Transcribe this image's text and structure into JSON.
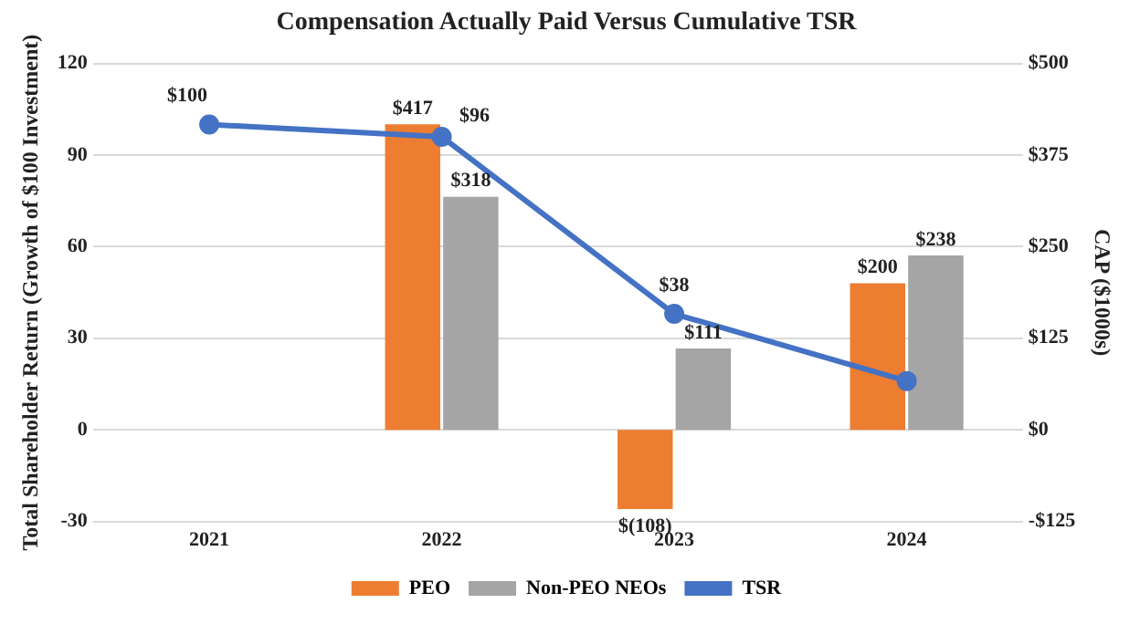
{
  "chart_data": {
    "type": "bar",
    "title": "Compensation Actually Paid Versus Cumulative TSR",
    "ylabel": "Total Shareholder Return (Growth of $100 Investment)",
    "y2label": "CAP ($1000s)",
    "categories": [
      "2021",
      "2022",
      "2023",
      "2024"
    ],
    "series": [
      {
        "name": "PEO",
        "axis": "y2",
        "color": "#ed7d31",
        "values": [
          null,
          417,
          -108,
          200
        ],
        "value_labels": [
          null,
          "$417",
          "$(108)",
          "$200"
        ]
      },
      {
        "name": "Non-PEO NEOs",
        "axis": "y2",
        "color": "#a5a5a5",
        "values": [
          null,
          318,
          111,
          238
        ],
        "value_labels": [
          null,
          "$318",
          "$111",
          "$238"
        ]
      },
      {
        "name": "TSR",
        "type": "line",
        "color": "#4472c4",
        "values": [
          100,
          96,
          38,
          16
        ],
        "value_labels": [
          "$100",
          "$96",
          "$38",
          null
        ]
      }
    ],
    "ylim": [
      -30,
      120
    ],
    "yticks": [
      -30,
      0,
      30,
      60,
      90,
      120
    ],
    "y2lim": [
      -125,
      500
    ],
    "y2ticks": [
      {
        "value": -125,
        "label": "-$125"
      },
      {
        "value": 0,
        "label": "$0"
      },
      {
        "value": 125,
        "label": "$125"
      },
      {
        "value": 250,
        "label": "$250"
      },
      {
        "value": 375,
        "label": "$375"
      },
      {
        "value": 500,
        "label": "$500"
      }
    ],
    "grid": "y",
    "legend": "bottom",
    "marker": "circle",
    "line_style": "solid"
  }
}
